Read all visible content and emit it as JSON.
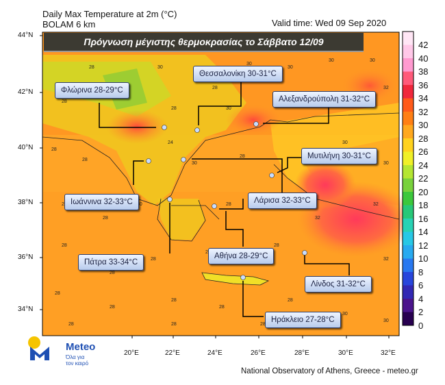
{
  "header": {
    "title_line1": "Daily Max Temperature at 2m (°C)",
    "title_line2": "BOLAM 6 km",
    "valid_time": "Valid time: Wed 09 Sep 2020"
  },
  "banner": "Πρόγνωση μέγιστης θερμοκρασίας το Σάββατο 12/09",
  "cities": [
    {
      "id": "thessaloniki",
      "label": "Θεσσαλονίκη 30-31°C"
    },
    {
      "id": "florina",
      "label": "Φλώρινα 28-29°C"
    },
    {
      "id": "alexandroupoli",
      "label": "Αλεξανδρούπολη 31-32°C"
    },
    {
      "id": "mytilini",
      "label": "Μυτιλήνη 30-31°C"
    },
    {
      "id": "ioannina",
      "label": "Ιωάννινα 32-33°C"
    },
    {
      "id": "larisa",
      "label": "Λάρισα 32-33°C"
    },
    {
      "id": "patra",
      "label": "Πάτρα 33-34°C"
    },
    {
      "id": "athina",
      "label": "Αθήνα 28-29°C"
    },
    {
      "id": "lindos",
      "label": "Λίνδος 31-32°C"
    },
    {
      "id": "irakleio",
      "label": "Ηράκλειο 27-28°C"
    }
  ],
  "axes": {
    "lat_labels": [
      "44°N",
      "42°N",
      "40°N",
      "38°N",
      "36°N",
      "34°N"
    ],
    "lon_labels": [
      "20°E",
      "22°E",
      "24°E",
      "26°E",
      "28°E",
      "30°E",
      "32°E"
    ]
  },
  "colorbar": {
    "ticks": [
      "42",
      "40",
      "38",
      "36",
      "34",
      "32",
      "30",
      "28",
      "26",
      "24",
      "22",
      "20",
      "18",
      "16",
      "14",
      "12",
      "10",
      "8",
      "6",
      "4",
      "2",
      "0"
    ],
    "colors": [
      "#ffe6f5",
      "#ffc8e8",
      "#ff9ad0",
      "#ff5a7a",
      "#f0283c",
      "#ff5a1a",
      "#ff7f14",
      "#ffa81e",
      "#ffd21e",
      "#f0f028",
      "#b4e632",
      "#78d23c",
      "#3cc83c",
      "#28c878",
      "#28d2b4",
      "#28c8e6",
      "#28aaf0",
      "#2878f0",
      "#2846dc",
      "#3228b4",
      "#4b148c",
      "#280050"
    ]
  },
  "footer": "National Observatory of Athens, Greece - meteo.gr",
  "logo": {
    "name": "Meteo",
    "subtitle_line1": "Όλα για",
    "subtitle_line2": "τον καιρό"
  }
}
